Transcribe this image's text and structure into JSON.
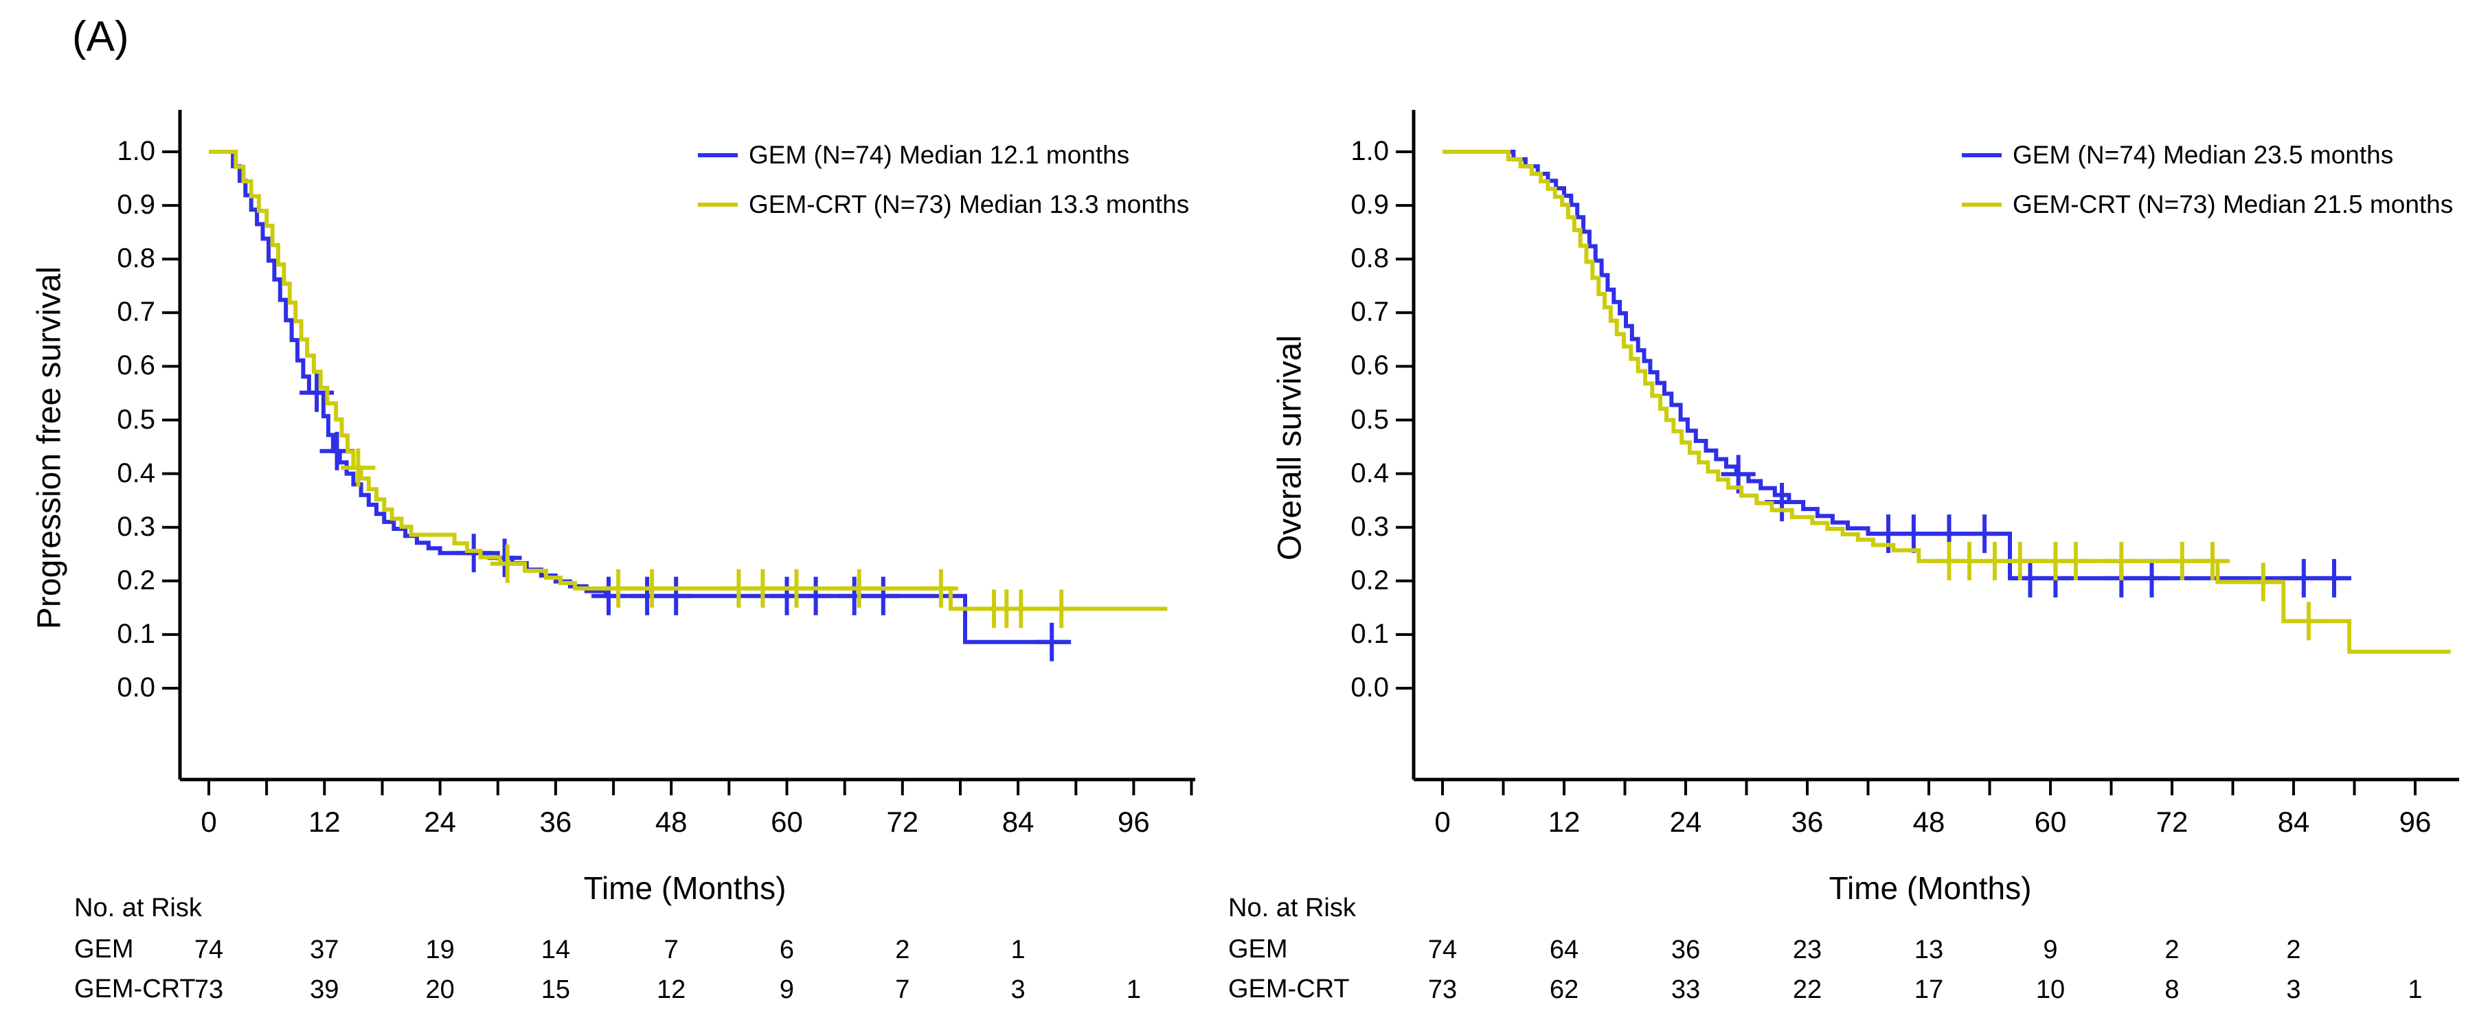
{
  "figure_label": "(A)",
  "colors": {
    "gem": "#2f2fe8",
    "gemcrt": "#cccc0e",
    "axis": "#000000"
  },
  "chart_data": [
    {
      "type": "line",
      "subtype": "kaplan-meier-step",
      "title": "",
      "xlabel": "Time (Months)",
      "ylabel": "Progression free survival",
      "xlim": [
        0,
        102
      ],
      "ylim": [
        0.0,
        1.0
      ],
      "grid": false,
      "legend_position": "top-right",
      "x_ticks": [
        0,
        12,
        24,
        36,
        48,
        60,
        72,
        84,
        96
      ],
      "y_ticks": [
        "0.0",
        "0.1",
        "0.2",
        "0.3",
        "0.4",
        "0.5",
        "0.6",
        "0.7",
        "0.8",
        "0.9",
        "1.0"
      ],
      "series": [
        {
          "name": "GEM (N=74) Median 12.1 months",
          "data_name": "gem-pfs",
          "color_key": "gem",
          "median_months": 12.1,
          "n": 74,
          "steps": [
            [
              0,
              1.0
            ],
            [
              2.5,
              0.973
            ],
            [
              3.2,
              0.946
            ],
            [
              3.8,
              0.919
            ],
            [
              4.4,
              0.892
            ],
            [
              5.0,
              0.865
            ],
            [
              5.6,
              0.838
            ],
            [
              6.2,
              0.797
            ],
            [
              6.8,
              0.762
            ],
            [
              7.4,
              0.724
            ],
            [
              8.0,
              0.686
            ],
            [
              8.6,
              0.649
            ],
            [
              9.2,
              0.611
            ],
            [
              9.8,
              0.581
            ],
            [
              10.4,
              0.551
            ],
            [
              11.9,
              0.507
            ],
            [
              12.4,
              0.472
            ],
            [
              12.9,
              0.442
            ],
            [
              13.6,
              0.421
            ],
            [
              14.3,
              0.4
            ],
            [
              15.0,
              0.38
            ],
            [
              15.8,
              0.36
            ],
            [
              16.6,
              0.342
            ],
            [
              17.4,
              0.325
            ],
            [
              18.2,
              0.31
            ],
            [
              19.2,
              0.297
            ],
            [
              20.4,
              0.284
            ],
            [
              21.6,
              0.271
            ],
            [
              22.8,
              0.261
            ],
            [
              24.0,
              0.252
            ],
            [
              30.0,
              0.243
            ],
            [
              31.5,
              0.233
            ],
            [
              33.0,
              0.221
            ],
            [
              34.5,
              0.21
            ],
            [
              36.0,
              0.199
            ],
            [
              37.5,
              0.19
            ],
            [
              39.2,
              0.181
            ],
            [
              41.2,
              0.172
            ],
            [
              78.5,
              0.086
            ],
            [
              89.5,
              0.086
            ]
          ],
          "censors": [
            [
              11.2,
              0.551
            ],
            [
              13.3,
              0.442
            ],
            [
              27.5,
              0.252
            ],
            [
              30.7,
              0.243
            ],
            [
              41.5,
              0.172
            ],
            [
              45.5,
              0.172
            ],
            [
              48.5,
              0.172
            ],
            [
              60.0,
              0.172
            ],
            [
              63.0,
              0.172
            ],
            [
              67.0,
              0.172
            ],
            [
              70.0,
              0.172
            ],
            [
              87.5,
              0.086
            ]
          ]
        },
        {
          "name": "GEM-CRT (N=73) Median 13.3 months",
          "data_name": "gemcrt-pfs",
          "color_key": "gemcrt",
          "median_months": 13.3,
          "n": 73,
          "steps": [
            [
              0,
              1.0
            ],
            [
              2.8,
              0.972
            ],
            [
              3.6,
              0.945
            ],
            [
              4.4,
              0.917
            ],
            [
              5.2,
              0.89
            ],
            [
              6.0,
              0.862
            ],
            [
              6.6,
              0.826
            ],
            [
              7.2,
              0.79
            ],
            [
              7.8,
              0.754
            ],
            [
              8.4,
              0.719
            ],
            [
              9.0,
              0.684
            ],
            [
              9.6,
              0.65
            ],
            [
              10.2,
              0.62
            ],
            [
              10.9,
              0.59
            ],
            [
              11.6,
              0.56
            ],
            [
              12.3,
              0.531
            ],
            [
              13.2,
              0.501
            ],
            [
              13.8,
              0.471
            ],
            [
              14.4,
              0.441
            ],
            [
              15.0,
              0.411
            ],
            [
              15.8,
              0.391
            ],
            [
              16.6,
              0.371
            ],
            [
              17.4,
              0.352
            ],
            [
              18.2,
              0.333
            ],
            [
              19.0,
              0.316
            ],
            [
              20.0,
              0.301
            ],
            [
              21.0,
              0.286
            ],
            [
              25.5,
              0.27
            ],
            [
              26.8,
              0.256
            ],
            [
              28.2,
              0.244
            ],
            [
              30.2,
              0.232
            ],
            [
              32.8,
              0.219
            ],
            [
              35.0,
              0.206
            ],
            [
              36.5,
              0.196
            ],
            [
              38.0,
              0.186
            ],
            [
              77.0,
              0.148
            ],
            [
              99.5,
              0.148
            ]
          ],
          "censors": [
            [
              15.5,
              0.411
            ],
            [
              31.0,
              0.232
            ],
            [
              42.5,
              0.186
            ],
            [
              46.0,
              0.186
            ],
            [
              55.0,
              0.186
            ],
            [
              57.5,
              0.186
            ],
            [
              61.0,
              0.186
            ],
            [
              67.5,
              0.186
            ],
            [
              76.0,
              0.186
            ],
            [
              81.5,
              0.148
            ],
            [
              82.8,
              0.148
            ],
            [
              84.3,
              0.148
            ],
            [
              88.5,
              0.148
            ]
          ]
        }
      ],
      "risk_table": {
        "header": "No. at Risk",
        "times": [
          0,
          12,
          24,
          36,
          48,
          60,
          72,
          84,
          96
        ],
        "rows": [
          {
            "label": "GEM",
            "values": [
              "74",
              "37",
              "19",
              "14",
              "7",
              "6",
              "2",
              "1",
              ""
            ]
          },
          {
            "label": "GEM-CRT",
            "values": [
              "73",
              "39",
              "20",
              "15",
              "12",
              "9",
              "7",
              "3",
              "1"
            ]
          }
        ]
      }
    },
    {
      "type": "line",
      "subtype": "kaplan-meier-step",
      "title": "",
      "xlabel": "Time (Months)",
      "ylabel": "Overall survival",
      "xlim": [
        0,
        100
      ],
      "ylim": [
        0.0,
        1.0
      ],
      "grid": false,
      "legend_position": "top-right",
      "x_ticks": [
        0,
        12,
        24,
        36,
        48,
        60,
        72,
        84,
        96
      ],
      "y_ticks": [
        "0.0",
        "0.1",
        "0.2",
        "0.3",
        "0.4",
        "0.5",
        "0.6",
        "0.7",
        "0.8",
        "0.9",
        "1.0"
      ],
      "series": [
        {
          "name": "GEM (N=74) Median 23.5 months",
          "data_name": "gem-os",
          "color_key": "gem",
          "median_months": 23.5,
          "n": 74,
          "steps": [
            [
              0,
              1.0
            ],
            [
              7.0,
              0.986
            ],
            [
              8.2,
              0.973
            ],
            [
              9.4,
              0.959
            ],
            [
              10.4,
              0.946
            ],
            [
              11.2,
              0.932
            ],
            [
              12.0,
              0.918
            ],
            [
              12.7,
              0.901
            ],
            [
              13.3,
              0.878
            ],
            [
              13.9,
              0.851
            ],
            [
              14.5,
              0.824
            ],
            [
              15.1,
              0.797
            ],
            [
              15.7,
              0.77
            ],
            [
              16.3,
              0.743
            ],
            [
              16.9,
              0.72
            ],
            [
              17.5,
              0.699
            ],
            [
              18.1,
              0.675
            ],
            [
              18.7,
              0.651
            ],
            [
              19.3,
              0.63
            ],
            [
              19.9,
              0.61
            ],
            [
              20.5,
              0.589
            ],
            [
              21.2,
              0.569
            ],
            [
              21.9,
              0.549
            ],
            [
              22.6,
              0.528
            ],
            [
              23.5,
              0.501
            ],
            [
              24.2,
              0.48
            ],
            [
              25.0,
              0.461
            ],
            [
              26.0,
              0.443
            ],
            [
              27.0,
              0.427
            ],
            [
              28.0,
              0.413
            ],
            [
              29.0,
              0.399
            ],
            [
              30.2,
              0.386
            ],
            [
              31.4,
              0.373
            ],
            [
              32.8,
              0.36
            ],
            [
              34.2,
              0.347
            ],
            [
              35.6,
              0.334
            ],
            [
              37.0,
              0.321
            ],
            [
              38.5,
              0.309
            ],
            [
              40.0,
              0.298
            ],
            [
              42.0,
              0.288
            ],
            [
              56.0,
              0.205
            ],
            [
              89.5,
              0.205
            ]
          ],
          "censors": [
            [
              29.2,
              0.399
            ],
            [
              33.5,
              0.347
            ],
            [
              44.0,
              0.288
            ],
            [
              46.5,
              0.288
            ],
            [
              50.0,
              0.288
            ],
            [
              53.5,
              0.288
            ],
            [
              58.0,
              0.205
            ],
            [
              60.5,
              0.205
            ],
            [
              67.0,
              0.205
            ],
            [
              70.0,
              0.205
            ],
            [
              85.0,
              0.205
            ],
            [
              88.0,
              0.205
            ]
          ]
        },
        {
          "name": "GEM-CRT (N=73) Median 21.5 months",
          "data_name": "gemcrt-os",
          "color_key": "gemcrt",
          "median_months": 21.5,
          "n": 73,
          "steps": [
            [
              0,
              1.0
            ],
            [
              6.5,
              0.986
            ],
            [
              7.7,
              0.973
            ],
            [
              8.8,
              0.959
            ],
            [
              9.7,
              0.945
            ],
            [
              10.4,
              0.931
            ],
            [
              11.1,
              0.916
            ],
            [
              11.8,
              0.901
            ],
            [
              12.4,
              0.878
            ],
            [
              13.0,
              0.854
            ],
            [
              13.6,
              0.825
            ],
            [
              14.2,
              0.795
            ],
            [
              14.8,
              0.765
            ],
            [
              15.4,
              0.735
            ],
            [
              16.0,
              0.71
            ],
            [
              16.6,
              0.685
            ],
            [
              17.2,
              0.66
            ],
            [
              17.9,
              0.637
            ],
            [
              18.6,
              0.614
            ],
            [
              19.3,
              0.591
            ],
            [
              20.0,
              0.568
            ],
            [
              20.7,
              0.545
            ],
            [
              21.5,
              0.521
            ],
            [
              22.1,
              0.5
            ],
            [
              22.8,
              0.479
            ],
            [
              23.6,
              0.458
            ],
            [
              24.4,
              0.439
            ],
            [
              25.3,
              0.421
            ],
            [
              26.2,
              0.404
            ],
            [
              27.2,
              0.389
            ],
            [
              28.2,
              0.374
            ],
            [
              29.5,
              0.359
            ],
            [
              31.0,
              0.345
            ],
            [
              32.5,
              0.332
            ],
            [
              34.5,
              0.319
            ],
            [
              36.5,
              0.308
            ],
            [
              38.0,
              0.297
            ],
            [
              39.5,
              0.287
            ],
            [
              41.0,
              0.277
            ],
            [
              42.5,
              0.267
            ],
            [
              44.5,
              0.257
            ],
            [
              47.0,
              0.237
            ],
            [
              76.5,
              0.198
            ],
            [
              83.0,
              0.125
            ],
            [
              89.5,
              0.068
            ],
            [
              99.5,
              0.068
            ]
          ],
          "censors": [
            [
              50.0,
              0.237
            ],
            [
              52.0,
              0.237
            ],
            [
              54.5,
              0.237
            ],
            [
              57.0,
              0.237
            ],
            [
              60.5,
              0.237
            ],
            [
              62.5,
              0.237
            ],
            [
              67.0,
              0.237
            ],
            [
              73.0,
              0.237
            ],
            [
              76.0,
              0.237
            ],
            [
              81.0,
              0.198
            ],
            [
              85.5,
              0.125
            ]
          ]
        }
      ],
      "risk_table": {
        "header": "No. at Risk",
        "times": [
          0,
          12,
          24,
          36,
          48,
          60,
          72,
          84,
          96
        ],
        "rows": [
          {
            "label": "GEM",
            "values": [
              "74",
              "64",
              "36",
              "23",
              "13",
              "9",
              "2",
              "2",
              ""
            ]
          },
          {
            "label": "GEM-CRT",
            "values": [
              "73",
              "62",
              "33",
              "22",
              "17",
              "10",
              "8",
              "3",
              "1"
            ]
          }
        ]
      }
    }
  ]
}
